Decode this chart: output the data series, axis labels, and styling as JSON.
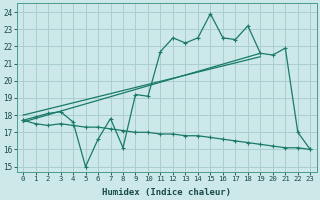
{
  "xlabel": "Humidex (Indice chaleur)",
  "bg_color": "#cce8e8",
  "grid_color": "#aacfcf",
  "line_color": "#1a7a6a",
  "xlim": [
    -0.5,
    23.5
  ],
  "ylim": [
    14.7,
    24.5
  ],
  "xticks": [
    0,
    1,
    2,
    3,
    4,
    5,
    6,
    7,
    8,
    9,
    10,
    11,
    12,
    13,
    14,
    15,
    16,
    17,
    18,
    19,
    20,
    21,
    22,
    23
  ],
  "yticks": [
    15,
    16,
    17,
    18,
    19,
    20,
    21,
    22,
    23,
    24
  ],
  "main_x": [
    0,
    1,
    2,
    3,
    4,
    5,
    6,
    7,
    8,
    9,
    10,
    11,
    12,
    13,
    14,
    15,
    16,
    17,
    18,
    19,
    20,
    21,
    22,
    23
  ],
  "main_y": [
    17.7,
    17.9,
    18.1,
    18.2,
    17.6,
    15.0,
    16.6,
    17.8,
    16.1,
    19.2,
    19.1,
    21.7,
    22.5,
    22.2,
    22.5,
    23.9,
    22.5,
    22.4,
    23.2,
    21.6,
    21.5,
    21.9,
    17.0,
    16.0
  ],
  "trend1_x": [
    0,
    19
  ],
  "trend1_y": [
    17.6,
    21.6
  ],
  "trend2_x": [
    0,
    19
  ],
  "trend2_y": [
    18.0,
    21.4
  ],
  "low_x": [
    0,
    1,
    2,
    3,
    4,
    5,
    6,
    7,
    8,
    9,
    10,
    11,
    12,
    13,
    14,
    15,
    16,
    17,
    18,
    19,
    20,
    21,
    22,
    23
  ],
  "low_y": [
    17.7,
    17.5,
    17.4,
    17.5,
    17.4,
    17.3,
    17.3,
    17.2,
    17.1,
    17.0,
    17.0,
    16.9,
    16.9,
    16.8,
    16.8,
    16.7,
    16.6,
    16.5,
    16.4,
    16.3,
    16.2,
    16.1,
    16.1,
    16.0
  ]
}
